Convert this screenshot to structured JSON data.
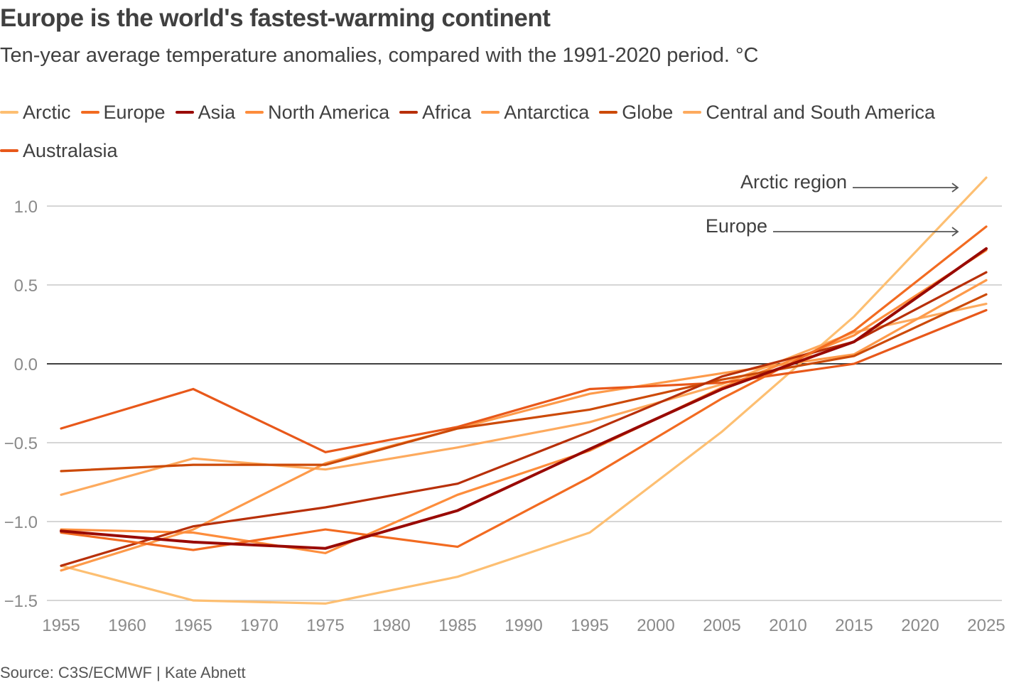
{
  "header": {
    "title": "Europe is the world's fastest-warming continent",
    "subtitle": "Ten-year average temperature anomalies, compared with the 1991-2020 period. °C"
  },
  "footer": {
    "source": "Source: C3S/ECMWF | Kate Abnett"
  },
  "colors": {
    "gridline": "#c8c8c8",
    "zero_line": "#404040",
    "tick_label": "#8a8a8a",
    "annotation": "#555555"
  },
  "chart_data": {
    "type": "line",
    "title": "Europe is the world's fastest-warming continent",
    "subtitle": "Ten-year average temperature anomalies, compared with the 1991-2020 period. °C",
    "xlabel": "",
    "ylabel": "°C",
    "x": [
      1955,
      1965,
      1975,
      1985,
      1995,
      2005,
      2015,
      2025
    ],
    "xlim": [
      1955,
      2025
    ],
    "ylim": [
      -1.5,
      1.2
    ],
    "xticks": [
      "1955",
      "1960",
      "1965",
      "1970",
      "1975",
      "1980",
      "1985",
      "1990",
      "1995",
      "2000",
      "2005",
      "2010",
      "2015",
      "2020",
      "2025"
    ],
    "yticks": [
      {
        "value": 1.0,
        "label": "1.0"
      },
      {
        "value": 0.5,
        "label": "0.5"
      },
      {
        "value": 0.0,
        "label": "0.0"
      },
      {
        "value": -0.5,
        "label": "−0.5"
      },
      {
        "value": -1.0,
        "label": "−1.0"
      },
      {
        "value": -1.5,
        "label": "−1.5"
      }
    ],
    "grid": true,
    "legend_position": "top-left",
    "series": [
      {
        "name": "Arctic",
        "color": "#fdbf72",
        "values": [
          -1.28,
          -1.5,
          -1.52,
          -1.35,
          -1.07,
          -0.43,
          0.3,
          1.18
        ]
      },
      {
        "name": "Europe",
        "color": "#f26b21",
        "values": [
          -1.07,
          -1.18,
          -1.05,
          -1.16,
          -0.72,
          -0.22,
          0.21,
          0.87
        ]
      },
      {
        "name": "Asia",
        "color": "#990a04",
        "values": [
          -1.06,
          -1.13,
          -1.17,
          -0.93,
          -0.54,
          -0.16,
          0.14,
          0.73
        ]
      },
      {
        "name": "North America",
        "color": "#fd8d3c",
        "values": [
          -1.05,
          -1.07,
          -1.2,
          -0.83,
          -0.55,
          -0.15,
          0.18,
          0.72
        ]
      },
      {
        "name": "Africa",
        "color": "#b83009",
        "values": [
          -1.28,
          -1.03,
          -0.91,
          -0.76,
          -0.43,
          -0.08,
          0.14,
          0.58
        ]
      },
      {
        "name": "Antarctica",
        "color": "#fd9a4a",
        "values": [
          -1.31,
          -1.05,
          -0.63,
          -0.41,
          -0.19,
          -0.06,
          0.06,
          0.53
        ]
      },
      {
        "name": "Globe",
        "color": "#cc4a08",
        "values": [
          -0.68,
          -0.64,
          -0.64,
          -0.41,
          -0.29,
          -0.1,
          0.05,
          0.44
        ]
      },
      {
        "name": "Central and South America",
        "color": "#fdaa5e",
        "values": [
          -0.83,
          -0.6,
          -0.67,
          -0.53,
          -0.37,
          -0.13,
          0.2,
          0.38
        ]
      },
      {
        "name": "Australasia",
        "color": "#e8581a",
        "values": [
          -0.41,
          -0.16,
          -0.56,
          -0.4,
          -0.16,
          -0.12,
          0.0,
          0.34
        ]
      }
    ],
    "annotations": [
      {
        "text": "Arctic region",
        "target_series": "Arctic",
        "arrow": "right"
      },
      {
        "text": "Europe",
        "target_series": "Europe",
        "arrow": "right"
      }
    ]
  }
}
